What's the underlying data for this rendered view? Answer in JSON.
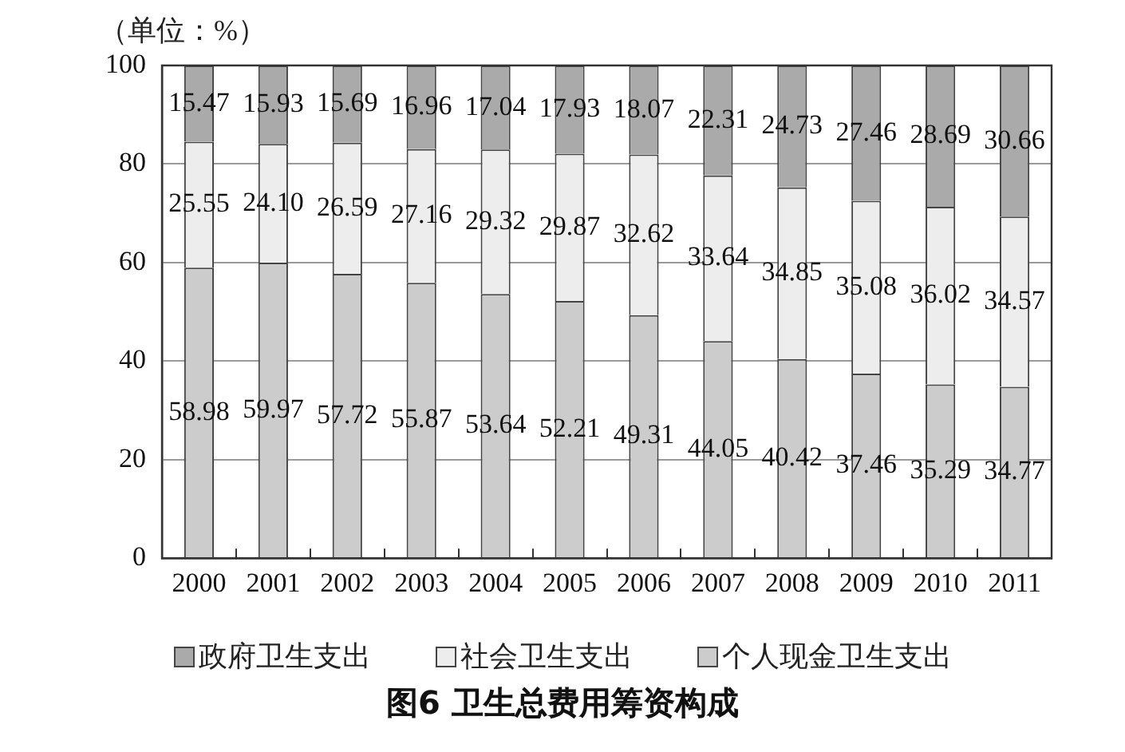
{
  "chart_data": {
    "type": "bar",
    "title": "图6 卫生总费用筹资构成",
    "ylabel": "（单位：%）",
    "categories": [
      "2000",
      "2001",
      "2002",
      "2003",
      "2004",
      "2005",
      "2006",
      "2007",
      "2008",
      "2009",
      "2010",
      "2011"
    ],
    "series": [
      {
        "name": "个人现金卫生支出",
        "color": "#cccccc",
        "values": [
          58.98,
          59.97,
          57.72,
          55.87,
          53.64,
          52.21,
          49.31,
          44.05,
          40.42,
          37.46,
          35.29,
          34.77
        ],
        "value_labels": [
          "58.98",
          "59.97",
          "57.72",
          "55.87",
          "53.64",
          "52.21",
          "49.31",
          "44.05",
          "40.42",
          "37.46",
          "35.29",
          "34.77"
        ]
      },
      {
        "name": "社会卫生支出",
        "color": "#ededed",
        "values": [
          25.55,
          24.1,
          26.59,
          27.16,
          29.32,
          29.87,
          32.62,
          33.64,
          34.85,
          35.08,
          36.02,
          34.57
        ],
        "value_labels": [
          "25.55",
          "24.10",
          "26.59",
          "27.16",
          "29.32",
          "29.87",
          "32.62",
          "33.64",
          "34.85",
          "35.08",
          "36.02",
          "34.57"
        ]
      },
      {
        "name": "政府卫生支出",
        "color": "#aaaaaa",
        "values": [
          15.47,
          15.93,
          15.69,
          16.96,
          17.04,
          17.93,
          18.07,
          22.31,
          24.73,
          27.46,
          28.69,
          30.66
        ],
        "value_labels": [
          "15.47",
          "15.93",
          "15.69",
          "16.96",
          "17.04",
          "17.93",
          "18.07",
          "22.31",
          "24.73",
          "27.46",
          "28.69",
          "30.66"
        ]
      }
    ],
    "stacked": true,
    "ylim": [
      0,
      100
    ],
    "yticks": [
      0,
      20,
      40,
      60,
      80,
      100
    ],
    "grid": "y",
    "legend": "bottom"
  }
}
